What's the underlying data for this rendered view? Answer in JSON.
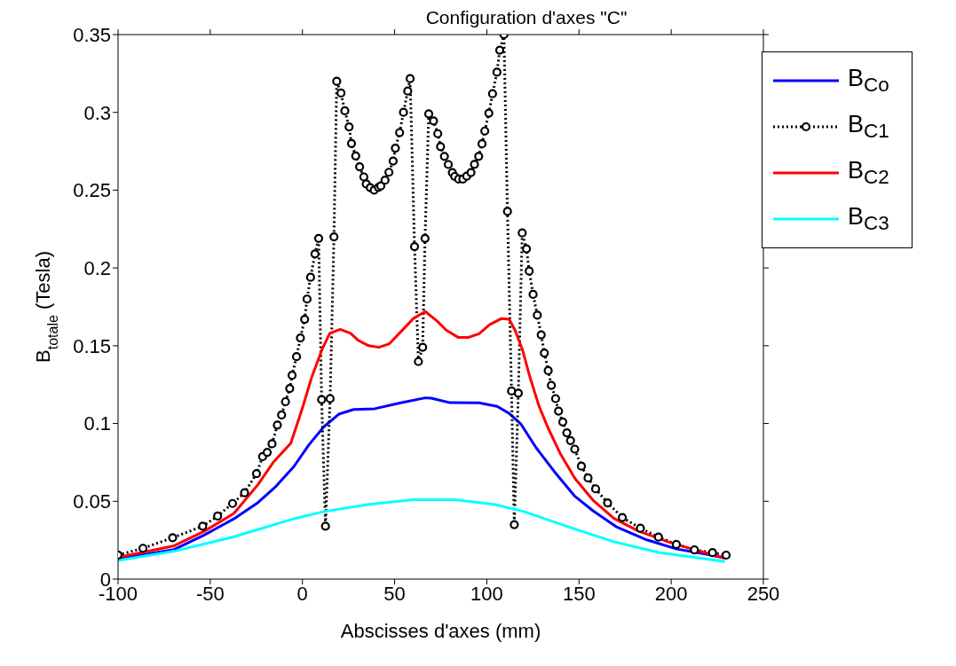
{
  "chart_data": {
    "type": "line",
    "title": "Configuration d'axes \"C\"",
    "xlabel": "Abscisses d'axes (mm)",
    "ylabel": "B$_{totale}$ (Tesla)",
    "xlim": [
      -100,
      250
    ],
    "xticks": [
      -100,
      -50,
      0,
      50,
      100,
      150,
      200,
      250
    ],
    "ylim": [
      0,
      0.35
    ],
    "yticks": [
      0,
      0.05,
      0.1,
      0.15,
      0.2,
      0.25,
      0.3,
      0.35
    ],
    "legend": "top right",
    "series": [
      {
        "name": "B$_{Co}$",
        "color": "#0000ff",
        "line_style": "solid",
        "marker": "none",
        "x": [
          -100,
          -69.6,
          -53.3,
          -37.1,
          -24.1,
          -14.3,
          -4.6,
          3.5,
          11.6,
          19.7,
          27.8,
          39.2,
          52.1,
          66.6,
          69.8,
          79.6,
          95.8,
          105.6,
          112.1,
          118.6,
          126.7,
          136.5,
          147.8,
          157.6,
          170.6,
          186.8,
          203.1,
          219.3,
          229.1
        ],
        "values": [
          0.013,
          0.019,
          0.0283,
          0.0388,
          0.0492,
          0.0597,
          0.0724,
          0.0863,
          0.0979,
          0.106,
          0.109,
          0.1095,
          0.113,
          0.1165,
          0.1163,
          0.1135,
          0.1133,
          0.111,
          0.1065,
          0.0995,
          0.0845,
          0.0693,
          0.0532,
          0.0439,
          0.0334,
          0.0252,
          0.0193,
          0.0159,
          0.0135
        ]
      },
      {
        "name": "B$_{C1}$",
        "color": "#000000",
        "line_style": "dotted",
        "marker": "circle",
        "x": [
          -100,
          -86.5,
          -70.4,
          -54.1,
          -46,
          -37.9,
          -31.4,
          -24.9,
          -21.6,
          -19.1,
          -16.5,
          -13.6,
          -11.3,
          -9.2,
          -6.9,
          -5.6,
          -3.2,
          -1.1,
          1.2,
          2.5,
          4.4,
          6.8,
          8.8,
          10.4,
          12.5,
          15,
          17.1,
          18.6,
          20.9,
          23,
          25.3,
          26.6,
          28.9,
          31,
          33.3,
          34.6,
          36.8,
          38.9,
          41.2,
          42.5,
          44.8,
          46.9,
          49.2,
          50.4,
          52.7,
          54.8,
          57.1,
          58.4,
          60.8,
          62.9,
          65.2,
          66.5,
          68.5,
          71.1,
          73.4,
          74.9,
          77,
          79.1,
          81.3,
          82.6,
          84.7,
          87,
          89.1,
          91.4,
          93.3,
          95.6,
          97.4,
          98.9,
          101.1,
          103.1,
          105.5,
          107,
          109.3,
          111.2,
          113.4,
          114.9,
          117.1,
          119.2,
          121.5,
          123,
          125.1,
          127.4,
          129.5,
          131.2,
          133.3,
          135,
          137.3,
          138.9,
          141.2,
          143.4,
          145.4,
          147.7,
          151.3,
          154.9,
          159,
          165.5,
          173.5,
          183.3,
          193.1,
          202.8,
          212.6,
          222.4,
          229.8
        ],
        "values": [
          0.0155,
          0.0198,
          0.0266,
          0.034,
          0.0405,
          0.0486,
          0.0555,
          0.0678,
          0.0787,
          0.0815,
          0.087,
          0.099,
          0.1055,
          0.114,
          0.1225,
          0.131,
          0.143,
          0.155,
          0.167,
          0.18,
          0.194,
          0.209,
          0.219,
          0.1154,
          0.034,
          0.116,
          0.22,
          0.32,
          0.3124,
          0.301,
          0.2907,
          0.28,
          0.272,
          0.265,
          0.2585,
          0.254,
          0.2516,
          0.25,
          0.2518,
          0.2527,
          0.2564,
          0.2615,
          0.2687,
          0.277,
          0.287,
          0.3,
          0.3137,
          0.3217,
          0.2137,
          0.1398,
          0.149,
          0.219,
          0.299,
          0.2945,
          0.2863,
          0.278,
          0.2717,
          0.2665,
          0.2613,
          0.2588,
          0.2571,
          0.2571,
          0.259,
          0.2613,
          0.2666,
          0.2717,
          0.2798,
          0.288,
          0.2995,
          0.312,
          0.3258,
          0.34,
          0.35,
          0.2363,
          0.1209,
          0.035,
          0.1195,
          0.2225,
          0.2123,
          0.198,
          0.183,
          0.1696,
          0.157,
          0.1453,
          0.134,
          0.1245,
          0.116,
          0.108,
          0.101,
          0.094,
          0.089,
          0.0835,
          0.0726,
          0.065,
          0.058,
          0.049,
          0.0396,
          0.0327,
          0.027,
          0.0223,
          0.0188,
          0.017,
          0.0154
        ]
      },
      {
        "name": "B$_{C2}$",
        "color": "#ff0000",
        "line_style": "solid",
        "marker": "none",
        "x": [
          -100,
          -69.6,
          -53.3,
          -37.1,
          -24.1,
          -16,
          -6.3,
          0.2,
          5.1,
          10.7,
          14.8,
          20.5,
          26.1,
          30.2,
          35.9,
          41.5,
          47.2,
          53.7,
          60.2,
          66.6,
          73.1,
          78,
          84.4,
          90.1,
          95.8,
          101.5,
          108,
          112.1,
          115.3,
          119.4,
          123.4,
          128.3,
          133.2,
          139.7,
          147.8,
          157.6,
          169,
          182,
          198.2,
          214.5,
          229.1
        ],
        "values": [
          0.014,
          0.0214,
          0.0307,
          0.0423,
          0.0608,
          0.0748,
          0.0874,
          0.1107,
          0.13,
          0.1478,
          0.158,
          0.1605,
          0.158,
          0.1535,
          0.15,
          0.149,
          0.1513,
          0.1594,
          0.1675,
          0.172,
          0.1658,
          0.16,
          0.1554,
          0.1554,
          0.1577,
          0.1635,
          0.1675,
          0.167,
          0.16,
          0.1472,
          0.1298,
          0.1112,
          0.0972,
          0.081,
          0.0647,
          0.0507,
          0.039,
          0.031,
          0.024,
          0.0182,
          0.0135
        ]
      },
      {
        "name": "B$_{C3}$",
        "color": "#00ffff",
        "line_style": "solid",
        "marker": "none",
        "x": [
          -100,
          -69.6,
          -37.1,
          -4.6,
          11.6,
          35.9,
          60.2,
          82.8,
          104,
          120.2,
          144.6,
          168.9,
          193.3,
          229.1
        ],
        "values": [
          0.012,
          0.0179,
          0.0272,
          0.0388,
          0.0434,
          0.048,
          0.051,
          0.051,
          0.048,
          0.0434,
          0.0334,
          0.024,
          0.0171,
          0.0112
        ]
      }
    ]
  }
}
